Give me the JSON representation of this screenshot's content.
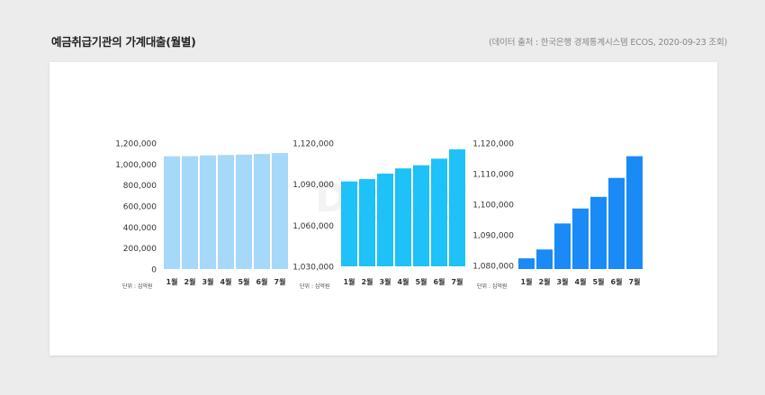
{
  "header": {
    "title": "예금취급기관의 가계대출(월별)",
    "source": "(데이터 출처 : 한국은행 경제통계시스템 ECOS, 2020-09-23 조회)"
  },
  "watermark": "Dighty",
  "chart_data": [
    {
      "type": "bar",
      "categories": [
        "1월",
        "2월",
        "3월",
        "4월",
        "5월",
        "6월",
        "7월"
      ],
      "values": [
        1074000,
        1075000,
        1082000,
        1086000,
        1090000,
        1096000,
        1105000
      ],
      "ylim": [
        0,
        1200000
      ],
      "yticks": [
        0,
        200000,
        400000,
        600000,
        800000,
        1000000,
        1200000
      ],
      "ytick_labels": [
        "0",
        "200,000",
        "400,000",
        "600,000",
        "800,000",
        "1,000,000",
        "1,200,000"
      ],
      "unit_label": "단위 : 십억원",
      "color": "#a6d8fa"
    },
    {
      "type": "bar",
      "categories": [
        "1월",
        "2월",
        "3월",
        "4월",
        "5월",
        "6월",
        "7월"
      ],
      "values": [
        1092000,
        1093700,
        1097700,
        1101500,
        1103800,
        1108600,
        1115400
      ],
      "ylim": [
        1030000,
        1120000
      ],
      "yticks": [
        1030000,
        1060000,
        1090000,
        1120000
      ],
      "ytick_labels": [
        "1,030,000",
        "1,060,000",
        "1,090,000",
        "1,120,000"
      ],
      "unit_label": "단위 : 십억원",
      "color": "#1ec1f8"
    },
    {
      "type": "bar",
      "categories": [
        "1월",
        "2월",
        "3월",
        "4월",
        "5월",
        "6월",
        "7월"
      ],
      "values": [
        1082300,
        1085200,
        1093700,
        1098600,
        1102400,
        1108600,
        1115700
      ],
      "ylim": [
        1078800,
        1120000
      ],
      "yticks": [
        1080000,
        1090000,
        1100000,
        1110000,
        1120000
      ],
      "ytick_labels": [
        "1,080,000",
        "1,090,000",
        "1,100,000",
        "1,110,000",
        "1,120,000"
      ],
      "unit_label": "단위 : 십억원",
      "color": "#1a8af7"
    }
  ]
}
